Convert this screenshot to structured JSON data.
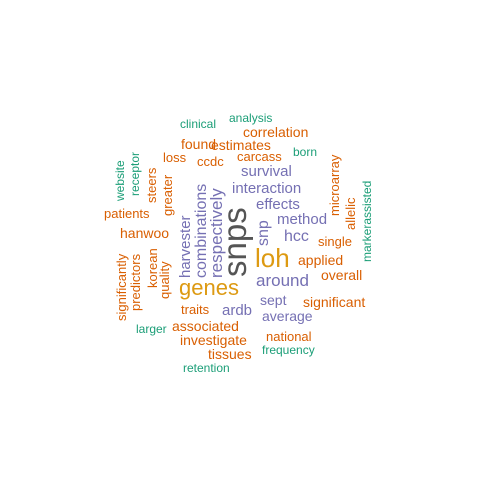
{
  "palette": {
    "big": "#555555",
    "gold": "#dd9a12",
    "purple": "#7570b3",
    "orange": "#d95f02",
    "green": "#1b9e77"
  },
  "words": [
    {
      "text": "snps",
      "color": "big"
    },
    {
      "text": "loh",
      "color": "gold"
    },
    {
      "text": "genes",
      "color": "gold"
    },
    {
      "text": "respectively",
      "color": "purple"
    },
    {
      "text": "combinations",
      "color": "purple"
    },
    {
      "text": "harvester",
      "color": "purple"
    },
    {
      "text": "interaction",
      "color": "purple"
    },
    {
      "text": "survival",
      "color": "purple"
    },
    {
      "text": "effects",
      "color": "purple"
    },
    {
      "text": "method",
      "color": "purple"
    },
    {
      "text": "hcc",
      "color": "purple"
    },
    {
      "text": "snp",
      "color": "purple"
    },
    {
      "text": "around",
      "color": "purple"
    },
    {
      "text": "sept",
      "color": "purple"
    },
    {
      "text": "ardb",
      "color": "purple"
    },
    {
      "text": "average",
      "color": "purple"
    },
    {
      "text": "correlation",
      "color": "orange"
    },
    {
      "text": "found",
      "color": "orange"
    },
    {
      "text": "estimates",
      "color": "orange"
    },
    {
      "text": "carcass",
      "color": "orange"
    },
    {
      "text": "loss",
      "color": "orange"
    },
    {
      "text": "ccdc",
      "color": "orange"
    },
    {
      "text": "patients",
      "color": "orange"
    },
    {
      "text": "hanwoo",
      "color": "orange"
    },
    {
      "text": "steers",
      "color": "orange"
    },
    {
      "text": "greater",
      "color": "orange"
    },
    {
      "text": "korean",
      "color": "orange"
    },
    {
      "text": "quality",
      "color": "orange"
    },
    {
      "text": "predictors",
      "color": "orange"
    },
    {
      "text": "significantly",
      "color": "orange"
    },
    {
      "text": "microarray",
      "color": "orange"
    },
    {
      "text": "allelic",
      "color": "orange"
    },
    {
      "text": "single",
      "color": "orange"
    },
    {
      "text": "applied",
      "color": "orange"
    },
    {
      "text": "overall",
      "color": "orange"
    },
    {
      "text": "significant",
      "color": "orange"
    },
    {
      "text": "traits",
      "color": "orange"
    },
    {
      "text": "associated",
      "color": "orange"
    },
    {
      "text": "investigate",
      "color": "orange"
    },
    {
      "text": "national",
      "color": "orange"
    },
    {
      "text": "tissues",
      "color": "orange"
    },
    {
      "text": "clinical",
      "color": "green"
    },
    {
      "text": "analysis",
      "color": "green"
    },
    {
      "text": "born",
      "color": "green"
    },
    {
      "text": "website",
      "color": "green"
    },
    {
      "text": "receptor",
      "color": "green"
    },
    {
      "text": "markerassisted",
      "color": "green"
    },
    {
      "text": "larger",
      "color": "green"
    },
    {
      "text": "frequency",
      "color": "green"
    },
    {
      "text": "retention",
      "color": "green"
    }
  ]
}
